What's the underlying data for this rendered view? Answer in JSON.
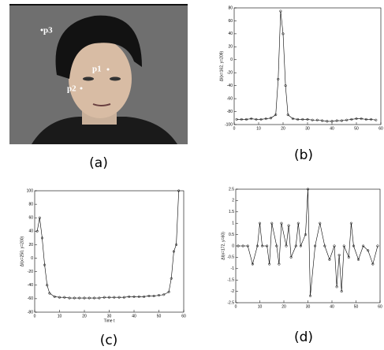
{
  "photo": {
    "labels": [
      "p3",
      "p1",
      "p2"
    ]
  },
  "captions": [
    "(a)",
    "(b)",
    "(c)",
    "(d)"
  ],
  "chart_data": [
    {
      "type": "line",
      "ylabel": "ΔI(x=162, y=209)",
      "color": "#000",
      "x": [
        1,
        3,
        5,
        7,
        9,
        11,
        13,
        15,
        17,
        18,
        19,
        20,
        21,
        22,
        24,
        26,
        28,
        30,
        32,
        34,
        36,
        38,
        40,
        42,
        44,
        46,
        48,
        50,
        52,
        54,
        56,
        58
      ],
      "values": [
        -92,
        -92,
        -92,
        -91,
        -92,
        -92,
        -91,
        -90,
        -85,
        -30,
        75,
        40,
        -40,
        -85,
        -91,
        -92,
        -92,
        -92,
        -93,
        -93,
        -94,
        -95,
        -95,
        -94,
        -94,
        -93,
        -92,
        -91,
        -91,
        -92,
        -92,
        -93
      ],
      "xlim": [
        0,
        60
      ],
      "ylim": [
        -100,
        80
      ],
      "xticks": [
        0,
        10,
        20,
        30,
        40,
        50,
        60
      ],
      "yticks": [
        -100,
        -80,
        -60,
        -40,
        -20,
        0,
        20,
        40,
        60,
        80
      ]
    },
    {
      "type": "line",
      "ylabel": "ΔI(x=250, y=200)",
      "xlabel": "Time t",
      "color": "#000",
      "x": [
        1,
        2,
        3,
        4,
        5,
        6,
        8,
        10,
        12,
        14,
        16,
        18,
        20,
        22,
        24,
        26,
        28,
        30,
        32,
        34,
        36,
        38,
        40,
        42,
        44,
        46,
        48,
        50,
        52,
        54,
        55,
        56,
        57,
        58
      ],
      "values": [
        40,
        60,
        30,
        -10,
        -40,
        -52,
        -57,
        -58,
        -58,
        -59,
        -59,
        -59,
        -59,
        -59,
        -59,
        -59,
        -58,
        -58,
        -58,
        -58,
        -58,
        -57,
        -57,
        -57,
        -57,
        -56,
        -56,
        -55,
        -54,
        -50,
        -30,
        10,
        20,
        100
      ],
      "xlim": [
        0,
        60
      ],
      "ylim": [
        -80,
        100
      ],
      "xticks": [
        0,
        10,
        20,
        30,
        40,
        50,
        60
      ],
      "yticks": [
        -80,
        -60,
        -40,
        -20,
        0,
        20,
        40,
        60,
        80,
        100
      ]
    },
    {
      "type": "line",
      "ylabel": "ΔI(x=172, y=60)",
      "color": "#000",
      "x": [
        1,
        3,
        5,
        7,
        9,
        10,
        11,
        13,
        14,
        15,
        17,
        18,
        19,
        21,
        22,
        23,
        25,
        26,
        27,
        29,
        30,
        31,
        33,
        35,
        37,
        39,
        41,
        42,
        43,
        44,
        45,
        47,
        48,
        49,
        51,
        53,
        55,
        57,
        59
      ],
      "values": [
        0,
        0,
        0,
        -0.8,
        0,
        1,
        0,
        0,
        -0.8,
        1,
        0,
        -0.8,
        1,
        0,
        0.9,
        -0.5,
        0,
        1,
        0,
        0.5,
        2.5,
        -2.2,
        0,
        1,
        0,
        -0.6,
        0,
        -1.8,
        -0.4,
        -2,
        0,
        -0.5,
        1,
        0,
        -0.6,
        0,
        -0.2,
        -0.8,
        0
      ],
      "xlim": [
        0,
        60
      ],
      "ylim": [
        -2.5,
        2.5
      ],
      "xticks": [
        0,
        10,
        20,
        30,
        40,
        50,
        60
      ],
      "yticks": [
        -2.5,
        -2,
        -1.5,
        -1,
        -0.5,
        0,
        0.5,
        1,
        1.5,
        2,
        2.5
      ]
    }
  ]
}
